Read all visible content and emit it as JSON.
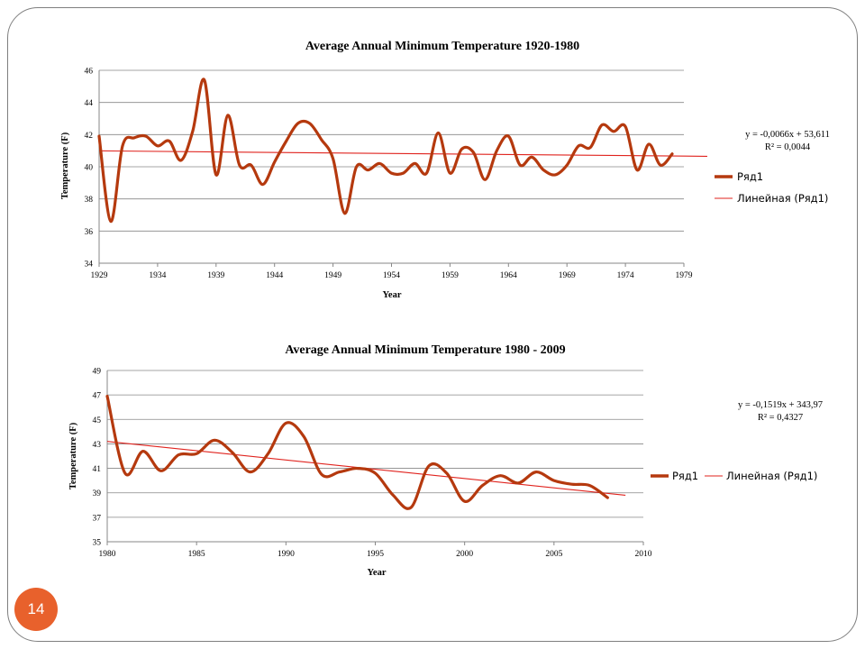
{
  "page_number": "14",
  "colors": {
    "series": "#b5390e",
    "trend": "#e0231e",
    "grid": "#878787",
    "badge": "#e8612c",
    "frame": "#7f7f7f"
  },
  "chart_data": [
    {
      "type": "line",
      "title": "Average Annual Minimum Temperature 1920-1980",
      "xlabel": "Year",
      "ylabel": "Temperature (F)",
      "xlim": [
        1929,
        1979
      ],
      "ylim": [
        34,
        46
      ],
      "xticks": [
        "1929",
        "1934",
        "1939",
        "1944",
        "1949",
        "1954",
        "1959",
        "1964",
        "1969",
        "1974",
        "1979"
      ],
      "yticks": [
        "34",
        "36",
        "38",
        "40",
        "42",
        "44",
        "46"
      ],
      "grid": "horizontal",
      "legend_position": "right",
      "series": [
        {
          "name": "Ряд1",
          "x": [
            1929,
            1930,
            1931,
            1932,
            1933,
            1934,
            1935,
            1936,
            1937,
            1938,
            1939,
            1940,
            1941,
            1942,
            1943,
            1944,
            1945,
            1946,
            1947,
            1948,
            1949,
            1950,
            1951,
            1952,
            1953,
            1954,
            1955,
            1956,
            1957,
            1958,
            1959,
            1960,
            1961,
            1962,
            1963,
            1964,
            1965,
            1966,
            1967,
            1968,
            1969,
            1970,
            1971,
            1972,
            1973,
            1974,
            1975,
            1976,
            1977,
            1978
          ],
          "values": [
            41.9,
            36.6,
            41.3,
            41.8,
            41.9,
            41.3,
            41.6,
            40.4,
            42.2,
            45.4,
            39.5,
            43.2,
            40.1,
            40.1,
            38.9,
            40.3,
            41.6,
            42.7,
            42.7,
            41.7,
            40.5,
            37.1,
            40.0,
            39.8,
            40.2,
            39.6,
            39.6,
            40.2,
            39.6,
            42.1,
            39.6,
            41.1,
            40.9,
            39.2,
            41.0,
            41.9,
            40.1,
            40.6,
            39.8,
            39.5,
            40.1,
            41.3,
            41.2,
            42.6,
            42.2,
            42.5,
            39.8,
            41.4,
            40.1,
            40.8
          ]
        },
        {
          "name": "Линейная (Ряд1)",
          "type": "trendline",
          "x": [
            1929,
            1981
          ],
          "values": [
            40.99,
            40.65
          ]
        }
      ],
      "annotations": [
        "y = -0,0066x + 53,611",
        "R² = 0,0044"
      ]
    },
    {
      "type": "line",
      "title": "Average Annual Minimum Temperature 1980 - 2009",
      "xlabel": "Year",
      "ylabel": "Temperature (F)",
      "xlim": [
        1980,
        2010
      ],
      "ylim": [
        35,
        49
      ],
      "xticks": [
        "1980",
        "1985",
        "1990",
        "1995",
        "2000",
        "2005",
        "2010"
      ],
      "yticks": [
        "35",
        "37",
        "39",
        "41",
        "43",
        "45",
        "47",
        "49"
      ],
      "grid": "horizontal",
      "legend_position": "right",
      "series": [
        {
          "name": "Ряд1",
          "x": [
            1980,
            1981,
            1982,
            1983,
            1984,
            1985,
            1986,
            1987,
            1988,
            1989,
            1990,
            1991,
            1992,
            1993,
            1994,
            1995,
            1996,
            1997,
            1998,
            1999,
            2000,
            2001,
            2002,
            2003,
            2004,
            2005,
            2006,
            2007,
            2008
          ],
          "values": [
            46.9,
            40.6,
            42.4,
            40.8,
            42.1,
            42.2,
            43.3,
            42.3,
            40.7,
            42.2,
            44.7,
            43.6,
            40.5,
            40.7,
            41.0,
            40.6,
            38.8,
            37.8,
            41.2,
            40.6,
            38.3,
            39.6,
            40.4,
            39.8,
            40.7,
            40.0,
            39.7,
            39.6,
            38.6
          ]
        },
        {
          "name": "Линейная (Ряд1)",
          "type": "trendline",
          "x": [
            1980,
            2009
          ],
          "values": [
            43.2,
            38.8
          ]
        }
      ],
      "annotations": [
        "y = -0,1519x + 343,97",
        "R² = 0,4327"
      ]
    }
  ]
}
